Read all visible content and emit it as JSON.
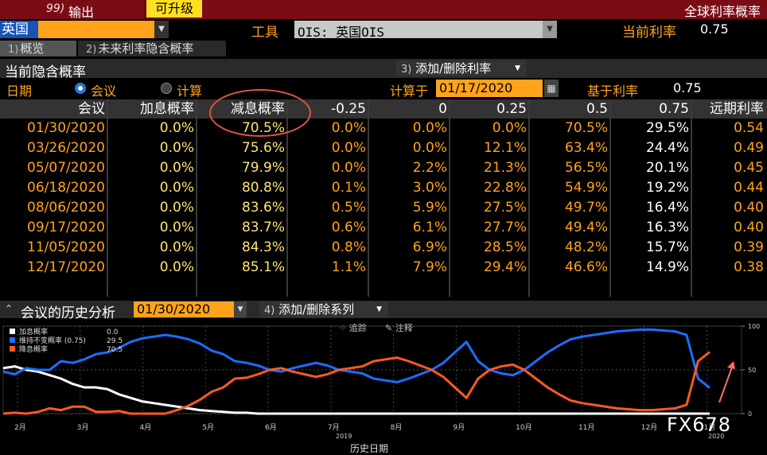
{
  "topbar": {
    "menu_num": "99)",
    "menu_label": "输出",
    "upgrade_label": "可升级",
    "title": "全球利率概率"
  },
  "country": {
    "value": "英国"
  },
  "tool": {
    "label": "工具",
    "value": "OIS: 英国OIS"
  },
  "current_rate": {
    "label": "当前利率",
    "value": "0.75"
  },
  "tabs": [
    {
      "num": "1)",
      "label": "概览"
    },
    {
      "num": "2)",
      "label": "未来利率隐含概率"
    }
  ],
  "section": {
    "title": "当前隐含概率",
    "add_rate_num": "3)",
    "add_rate_label": "添加/删除利率"
  },
  "options": {
    "date_label": "日期",
    "radio_meeting": "会议",
    "radio_calc": "计算",
    "calc_on_label": "计算于",
    "calc_date": "01/17/2020",
    "base_rate_label": "基于利率",
    "base_rate_value": "0.75"
  },
  "table": {
    "headers": [
      "会议",
      "加息概率",
      "减息概率",
      "-0.25",
      "0",
      "0.25",
      "0.5",
      "0.75",
      "远期利率"
    ],
    "rows": [
      [
        "01/30/2020",
        "0.0%",
        "70.5%",
        "0.0%",
        "0.0%",
        "0.0%",
        "70.5%",
        "29.5%",
        "0.54"
      ],
      [
        "03/26/2020",
        "0.0%",
        "75.6%",
        "0.0%",
        "0.0%",
        "12.1%",
        "63.4%",
        "24.4%",
        "0.49"
      ],
      [
        "05/07/2020",
        "0.0%",
        "79.9%",
        "0.0%",
        "2.2%",
        "21.3%",
        "56.5%",
        "20.1%",
        "0.45"
      ],
      [
        "06/18/2020",
        "0.0%",
        "80.8%",
        "0.1%",
        "3.0%",
        "22.8%",
        "54.9%",
        "19.2%",
        "0.44"
      ],
      [
        "08/06/2020",
        "0.0%",
        "83.6%",
        "0.5%",
        "5.9%",
        "27.5%",
        "49.7%",
        "16.4%",
        "0.40"
      ],
      [
        "09/17/2020",
        "0.0%",
        "83.7%",
        "0.6%",
        "6.1%",
        "27.7%",
        "49.4%",
        "16.3%",
        "0.40"
      ],
      [
        "11/05/2020",
        "0.0%",
        "84.3%",
        "0.8%",
        "6.9%",
        "28.5%",
        "48.2%",
        "15.7%",
        "0.39"
      ],
      [
        "12/17/2020",
        "0.0%",
        "85.1%",
        "1.1%",
        "7.9%",
        "29.4%",
        "46.6%",
        "14.9%",
        "0.38"
      ]
    ]
  },
  "history": {
    "title": "会议的历史分析",
    "date": "01/30/2020",
    "add_series_num": "4)",
    "add_series_label": "添加/删除系列"
  },
  "chart_toolbar": {
    "track": "追踪",
    "annotate": "注释"
  },
  "chart_data": {
    "type": "line",
    "xlabel": "历史日期",
    "x_ticks": [
      "2月",
      "3月",
      "4月",
      "5月",
      "6月",
      "7月",
      "8月",
      "9月",
      "10月",
      "11月",
      "12月",
      "1月"
    ],
    "year_labels": [
      "2019",
      "2020"
    ],
    "ylim": [
      0,
      100
    ],
    "y_ticks": [
      "100",
      "50",
      "0"
    ],
    "series": [
      {
        "name": "加息概率",
        "color": "#ffffff",
        "last": "0.0",
        "values": [
          52,
          54,
          50,
          48,
          44,
          40,
          34,
          30,
          30,
          28,
          22,
          18,
          14,
          12,
          10,
          8,
          6,
          4,
          3,
          2,
          1,
          1,
          0,
          0,
          0,
          0,
          0,
          0,
          0,
          0,
          0,
          0,
          0,
          0,
          0,
          0,
          0,
          0,
          0,
          0,
          0,
          0,
          0,
          0,
          0,
          0,
          0,
          0,
          0,
          0,
          0,
          0,
          0,
          0,
          0,
          0,
          0,
          0,
          0,
          0,
          0,
          0
        ]
      },
      {
        "name": "维持不变概率 (0.75)",
        "color": "#1a6fff",
        "last": "29.5",
        "values": [
          48,
          45,
          52,
          50,
          50,
          60,
          58,
          62,
          68,
          70,
          75,
          82,
          86,
          88,
          90,
          88,
          85,
          80,
          72,
          68,
          60,
          58,
          55,
          50,
          48,
          52,
          55,
          58,
          55,
          50,
          48,
          46,
          40,
          38,
          36,
          40,
          45,
          50,
          58,
          70,
          82,
          60,
          50,
          46,
          44,
          50,
          60,
          70,
          78,
          85,
          88,
          90,
          92,
          94,
          95,
          96,
          96,
          95,
          94,
          90,
          40,
          29.5
        ]
      },
      {
        "name": "降息概率",
        "color": "#ff5a1f",
        "last": "70.5",
        "values": [
          0,
          1,
          0,
          2,
          6,
          4,
          8,
          8,
          2,
          2,
          3,
          0,
          0,
          0,
          0,
          4,
          9,
          16,
          25,
          30,
          40,
          41,
          45,
          50,
          52,
          48,
          45,
          42,
          45,
          50,
          52,
          54,
          60,
          62,
          64,
          60,
          55,
          50,
          42,
          30,
          18,
          40,
          50,
          54,
          56,
          50,
          40,
          30,
          22,
          15,
          12,
          10,
          8,
          6,
          5,
          4,
          4,
          5,
          6,
          10,
          60,
          70.5
        ]
      }
    ]
  },
  "watermark": "FX678"
}
